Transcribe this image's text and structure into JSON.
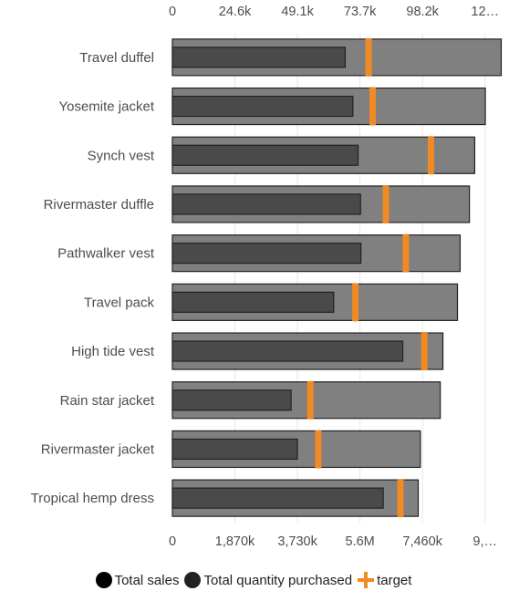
{
  "chart_data": {
    "type": "bar",
    "orientation": "horizontal",
    "variant": "bullet",
    "categories": [
      "Travel duffel",
      "Yosemite jacket",
      "Synch vest",
      "Rivermaster duffle",
      "Pathwalker vest",
      "Travel pack",
      "High tide vest",
      "Rain star jacket",
      "Rivermaster jacket",
      "Tropical hemp dress"
    ],
    "series": [
      {
        "name": "Total sales",
        "axis": "top",
        "color": "#808080",
        "values": [
          124000,
          118000,
          114000,
          112000,
          108500,
          107500,
          102000,
          101000,
          93500,
          92700
        ]
      },
      {
        "name": "Total quantity purchased",
        "axis": "bottom",
        "color": "#4a4a4a",
        "values": [
          4950000,
          5170000,
          5320000,
          5390000,
          5400000,
          4620000,
          6600000,
          3400000,
          3580000,
          6040000
        ]
      },
      {
        "name": "target",
        "axis": "top",
        "color": "#f08a24",
        "values": [
          74000,
          75500,
          97500,
          80500,
          88000,
          69000,
          95000,
          52000,
          55000,
          86000
        ]
      }
    ],
    "top_axis": {
      "ticks": [
        "0",
        "24.6k",
        "49.1k",
        "73.7k",
        "98.2k",
        "12…"
      ],
      "range": [
        0,
        122800
      ]
    },
    "bottom_axis": {
      "ticks": [
        "0",
        "1,870k",
        "3,730k",
        "5.6M",
        "7,460k",
        "9,…"
      ],
      "range": [
        0,
        9330000
      ]
    },
    "grid": true,
    "legend_position": "bottom"
  },
  "legend": {
    "total_sales": "Total sales",
    "total_quantity": "Total quantity purchased",
    "target": "target"
  },
  "colors": {
    "sales_bar": "#808080",
    "quantity_bar": "#4a4a4a",
    "target": "#f08a24",
    "border": "#222222",
    "grid": "#e6e6e6"
  }
}
